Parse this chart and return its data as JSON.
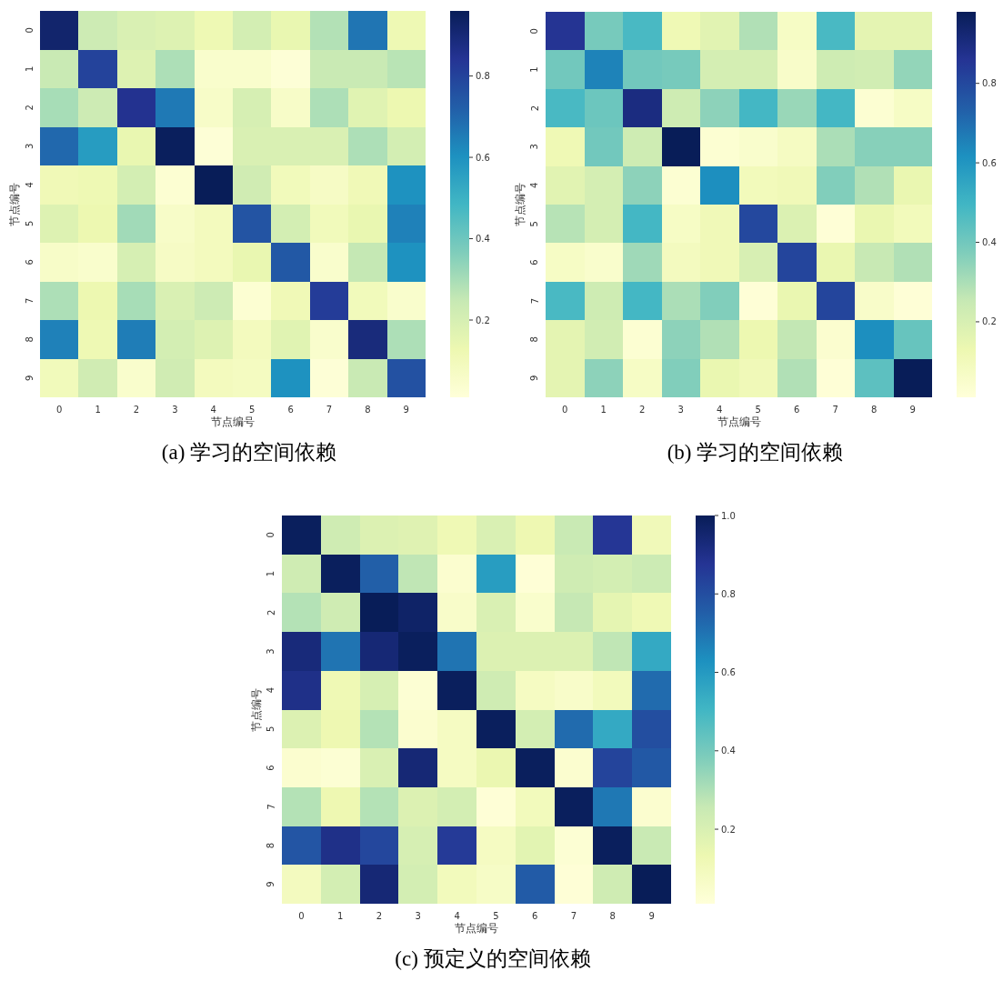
{
  "chart_data": [
    {
      "type": "heatmap",
      "xlabel": "节点编号",
      "ylabel": "节点编号",
      "annotations": [
        "(a) 学习的空间依赖"
      ],
      "categories": [
        "0",
        "1",
        "2",
        "3",
        "4",
        "5",
        "6",
        "7",
        "8",
        "9"
      ],
      "y_categories": [
        "0",
        "1",
        "2",
        "3",
        "4",
        "5",
        "6",
        "7",
        "8",
        "9"
      ],
      "cells": [
        [
          0.92,
          0.23,
          0.19,
          0.18,
          0.12,
          0.21,
          0.14,
          0.28,
          0.67,
          0.12
        ],
        [
          0.24,
          0.8,
          0.18,
          0.29,
          0.05,
          0.05,
          0.02,
          0.24,
          0.24,
          0.27
        ],
        [
          0.3,
          0.23,
          0.85,
          0.66,
          0.06,
          0.2,
          0.06,
          0.29,
          0.17,
          0.13
        ],
        [
          0.7,
          0.57,
          0.14,
          0.95,
          0.02,
          0.19,
          0.19,
          0.19,
          0.29,
          0.21
        ],
        [
          0.11,
          0.12,
          0.21,
          0.03,
          0.96,
          0.22,
          0.1,
          0.07,
          0.11,
          0.6
        ],
        [
          0.18,
          0.13,
          0.31,
          0.06,
          0.09,
          0.75,
          0.21,
          0.1,
          0.14,
          0.64
        ],
        [
          0.06,
          0.05,
          0.2,
          0.07,
          0.09,
          0.14,
          0.74,
          0.05,
          0.25,
          0.6
        ],
        [
          0.29,
          0.13,
          0.3,
          0.19,
          0.23,
          0.03,
          0.11,
          0.82,
          0.1,
          0.05
        ],
        [
          0.64,
          0.12,
          0.65,
          0.21,
          0.18,
          0.09,
          0.17,
          0.05,
          0.89,
          0.29
        ],
        [
          0.1,
          0.22,
          0.05,
          0.22,
          0.09,
          0.08,
          0.6,
          0.02,
          0.24,
          0.76
        ]
      ],
      "clim": [
        0.01,
        0.96
      ],
      "cticks": [
        0.2,
        0.4,
        0.6,
        0.8
      ]
    },
    {
      "type": "heatmap",
      "xlabel": "节点编号",
      "ylabel": "节点编号",
      "annotations": [
        "(b) 学习的空间依赖"
      ],
      "categories": [
        "0",
        "1",
        "2",
        "3",
        "4",
        "5",
        "6",
        "7",
        "8",
        "9"
      ],
      "y_categories": [
        "0",
        "1",
        "2",
        "3",
        "4",
        "5",
        "6",
        "7",
        "8",
        "9"
      ],
      "cells": [
        [
          0.86,
          0.39,
          0.48,
          0.12,
          0.17,
          0.29,
          0.07,
          0.48,
          0.16,
          0.16
        ],
        [
          0.4,
          0.65,
          0.4,
          0.39,
          0.21,
          0.21,
          0.06,
          0.23,
          0.22,
          0.34
        ],
        [
          0.48,
          0.41,
          0.9,
          0.23,
          0.35,
          0.49,
          0.33,
          0.49,
          0.03,
          0.07
        ],
        [
          0.12,
          0.4,
          0.23,
          0.98,
          0.03,
          0.05,
          0.08,
          0.3,
          0.36,
          0.36
        ],
        [
          0.17,
          0.21,
          0.35,
          0.03,
          0.62,
          0.1,
          0.11,
          0.37,
          0.29,
          0.14
        ],
        [
          0.28,
          0.21,
          0.49,
          0.07,
          0.11,
          0.8,
          0.19,
          0.02,
          0.14,
          0.1
        ],
        [
          0.07,
          0.05,
          0.32,
          0.09,
          0.11,
          0.2,
          0.81,
          0.14,
          0.25,
          0.29
        ],
        [
          0.48,
          0.23,
          0.49,
          0.3,
          0.37,
          0.02,
          0.14,
          0.81,
          0.06,
          0.02
        ],
        [
          0.16,
          0.22,
          0.03,
          0.35,
          0.29,
          0.13,
          0.26,
          0.04,
          0.62,
          0.42
        ],
        [
          0.16,
          0.35,
          0.07,
          0.37,
          0.14,
          0.11,
          0.29,
          0.02,
          0.44,
          0.98
        ]
      ],
      "clim": [
        0.01,
        0.98
      ],
      "cticks": [
        0.2,
        0.4,
        0.6,
        0.8
      ]
    },
    {
      "type": "heatmap",
      "xlabel": "节点编号",
      "ylabel": "节点编号",
      "annotations": [
        "(c) 预定义的空间依赖"
      ],
      "categories": [
        "0",
        "1",
        "2",
        "3",
        "4",
        "5",
        "6",
        "7",
        "8",
        "9"
      ],
      "y_categories": [
        "0",
        "1",
        "2",
        "3",
        "4",
        "5",
        "6",
        "7",
        "8",
        "9"
      ],
      "cells": [
        [
          0.99,
          0.23,
          0.19,
          0.18,
          0.12,
          0.2,
          0.13,
          0.25,
          0.87,
          0.11
        ],
        [
          0.23,
          0.99,
          0.75,
          0.27,
          0.04,
          0.59,
          0.02,
          0.23,
          0.22,
          0.24
        ],
        [
          0.29,
          0.23,
          1.0,
          0.97,
          0.06,
          0.2,
          0.05,
          0.26,
          0.16,
          0.12
        ],
        [
          0.93,
          0.7,
          0.94,
          0.99,
          0.7,
          0.19,
          0.19,
          0.19,
          0.27,
          0.55
        ],
        [
          0.9,
          0.12,
          0.21,
          0.03,
          0.99,
          0.23,
          0.08,
          0.06,
          0.1,
          0.72
        ],
        [
          0.19,
          0.13,
          0.29,
          0.04,
          0.08,
          0.99,
          0.22,
          0.72,
          0.55,
          0.8
        ],
        [
          0.04,
          0.03,
          0.2,
          0.94,
          0.08,
          0.14,
          0.99,
          0.04,
          0.83,
          0.77
        ],
        [
          0.29,
          0.13,
          0.29,
          0.19,
          0.22,
          0.02,
          0.1,
          0.99,
          0.69,
          0.04
        ],
        [
          0.78,
          0.9,
          0.82,
          0.21,
          0.86,
          0.08,
          0.17,
          0.03,
          0.99,
          0.25
        ],
        [
          0.09,
          0.22,
          0.94,
          0.22,
          0.1,
          0.07,
          0.76,
          0.02,
          0.23,
          1.0
        ]
      ],
      "clim": [
        0.01,
        1.0
      ],
      "cticks": [
        0.2,
        0.4,
        0.6,
        0.8,
        {
          "value": 1.0,
          "label": "1.0"
        }
      ]
    }
  ]
}
